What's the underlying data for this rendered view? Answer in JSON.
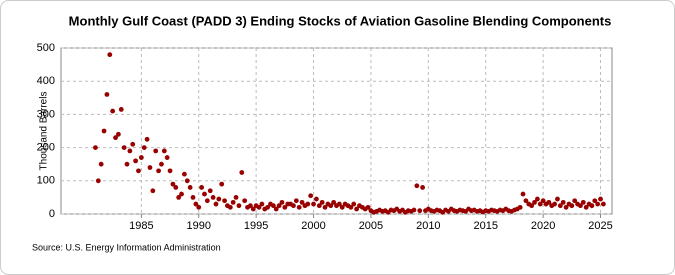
{
  "chart_data": {
    "type": "scatter",
    "title": "Monthly Gulf Coast (PADD 3) Ending Stocks of Aviation Gasoline Blending Components",
    "y_label": "Thousand Barrels",
    "source": "Source: U.S. Energy Information Administration",
    "color": "#990000",
    "grid": true,
    "xlim": [
      1978,
      2026
    ],
    "xticks": [
      1985,
      1990,
      1995,
      2000,
      2005,
      2010,
      2015,
      2020,
      2025
    ],
    "ylim": [
      0,
      500
    ],
    "yticks": [
      0,
      100,
      200,
      300,
      400,
      500
    ],
    "x": [
      1981,
      1981.25,
      1981.5,
      1981.75,
      1982,
      1982.25,
      1982.5,
      1982.75,
      1983,
      1983.25,
      1983.5,
      1983.75,
      1984,
      1984.25,
      1984.5,
      1984.75,
      1985,
      1985.25,
      1985.5,
      1985.75,
      1986,
      1986.25,
      1986.5,
      1986.75,
      1987,
      1987.25,
      1987.5,
      1987.75,
      1988,
      1988.25,
      1988.5,
      1988.75,
      1989,
      1989.25,
      1989.5,
      1989.75,
      1990,
      1990.25,
      1990.5,
      1990.75,
      1991,
      1991.25,
      1991.5,
      1991.75,
      1992,
      1992.25,
      1992.5,
      1992.75,
      1993,
      1993.25,
      1993.5,
      1993.75,
      1994,
      1994.25,
      1994.5,
      1994.75,
      1995,
      1995.25,
      1995.5,
      1995.75,
      1996,
      1996.25,
      1996.5,
      1996.75,
      1997,
      1997.25,
      1997.5,
      1997.75,
      1998,
      1998.25,
      1998.5,
      1998.75,
      1999,
      1999.25,
      1999.5,
      1999.75,
      2000,
      2000.25,
      2000.5,
      2000.75,
      2001,
      2001.25,
      2001.5,
      2001.75,
      2002,
      2002.25,
      2002.5,
      2002.75,
      2003,
      2003.25,
      2003.5,
      2003.75,
      2004,
      2004.25,
      2004.5,
      2004.75,
      2005,
      2005.25,
      2005.5,
      2005.75,
      2006,
      2006.25,
      2006.5,
      2006.75,
      2007,
      2007.25,
      2007.5,
      2007.75,
      2008,
      2008.25,
      2008.5,
      2008.75,
      2009,
      2009.25,
      2009.5,
      2009.75,
      2010,
      2010.25,
      2010.5,
      2010.75,
      2011,
      2011.25,
      2011.5,
      2011.75,
      2012,
      2012.25,
      2012.5,
      2012.75,
      2013,
      2013.25,
      2013.5,
      2013.75,
      2014,
      2014.25,
      2014.5,
      2014.75,
      2015,
      2015.25,
      2015.5,
      2015.75,
      2016,
      2016.25,
      2016.5,
      2016.75,
      2017,
      2017.25,
      2017.5,
      2017.75,
      2018,
      2018.25,
      2018.5,
      2018.75,
      2019,
      2019.25,
      2019.5,
      2019.75,
      2020,
      2020.25,
      2020.5,
      2020.75,
      2021,
      2021.25,
      2021.5,
      2021.75,
      2022,
      2022.25,
      2022.5,
      2022.75,
      2023,
      2023.25,
      2023.5,
      2023.75,
      2024,
      2024.25,
      2024.5,
      2024.75,
      2025,
      2025.25
    ],
    "values": [
      200,
      100,
      150,
      250,
      360,
      480,
      310,
      230,
      240,
      315,
      200,
      150,
      190,
      210,
      160,
      130,
      170,
      200,
      225,
      140,
      70,
      190,
      130,
      150,
      190,
      170,
      130,
      90,
      80,
      50,
      60,
      120,
      100,
      80,
      50,
      30,
      20,
      80,
      60,
      40,
      70,
      50,
      30,
      45,
      90,
      40,
      25,
      20,
      35,
      50,
      25,
      125,
      40,
      20,
      25,
      15,
      25,
      20,
      30,
      15,
      20,
      30,
      25,
      15,
      25,
      35,
      20,
      30,
      30,
      25,
      40,
      20,
      35,
      25,
      30,
      55,
      30,
      45,
      25,
      35,
      20,
      30,
      25,
      35,
      25,
      30,
      20,
      30,
      25,
      20,
      30,
      15,
      25,
      20,
      15,
      20,
      10,
      5,
      8,
      12,
      8,
      10,
      5,
      12,
      10,
      15,
      8,
      12,
      5,
      10,
      8,
      12,
      85,
      10,
      80,
      10,
      15,
      10,
      8,
      12,
      10,
      5,
      12,
      8,
      15,
      10,
      8,
      12,
      10,
      8,
      15,
      10,
      12,
      8,
      10,
      6,
      10,
      8,
      12,
      10,
      8,
      12,
      10,
      15,
      10,
      8,
      12,
      15,
      20,
      60,
      40,
      30,
      25,
      35,
      45,
      30,
      40,
      30,
      35,
      25,
      30,
      45,
      25,
      35,
      20,
      30,
      25,
      40,
      30,
      25,
      35,
      20,
      30,
      25,
      40,
      30,
      45,
      30
    ]
  }
}
